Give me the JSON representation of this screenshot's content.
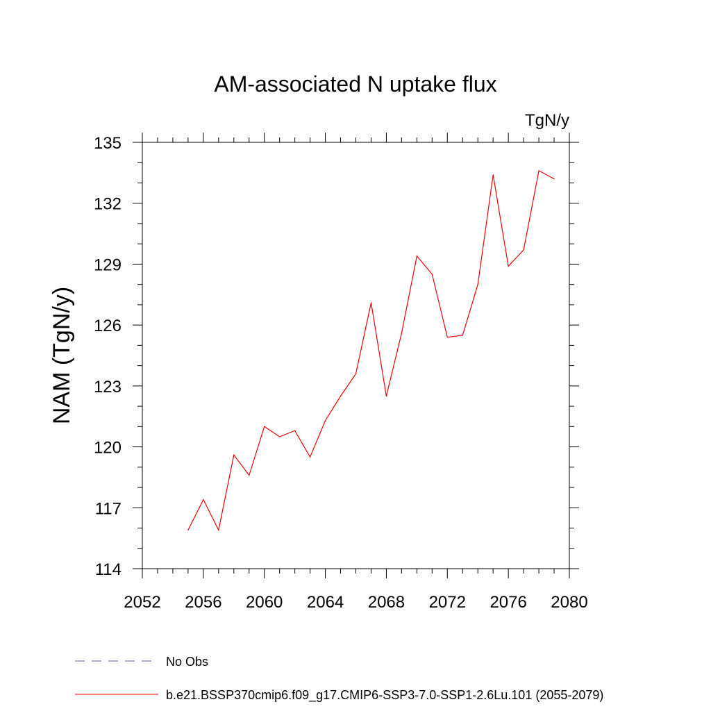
{
  "chart_data": {
    "type": "line",
    "title": "AM-associated N uptake flux",
    "units_label": "TgN/y",
    "ylabel": "NAM  (TgN/y)",
    "xlabel": "",
    "xlim": [
      2052,
      2080
    ],
    "ylim": [
      114,
      135
    ],
    "x_ticks": [
      "2052",
      "2056",
      "2060",
      "2064",
      "2068",
      "2072",
      "2076",
      "2080"
    ],
    "y_ticks": [
      "114",
      "117",
      "120",
      "123",
      "126",
      "129",
      "132",
      "135"
    ],
    "grid": false,
    "legend_position": "bottom-left",
    "legend": [
      {
        "label": "No Obs",
        "color": "#5a4fa8",
        "style": "dashed"
      },
      {
        "label": "b.e21.BSSP370cmip6.f09_g17.CMIP6-SSP3-7.0-SSP1-2.6Lu.101 (2055-2079)",
        "color": "#ee0000",
        "style": "solid"
      }
    ],
    "series": [
      {
        "name": "b.e21.BSSP370cmip6.f09_g17.CMIP6-SSP3-7.0-SSP1-2.6Lu.101 (2055-2079)",
        "color": "#ee0000",
        "x": [
          2055,
          2056,
          2057,
          2058,
          2059,
          2060,
          2061,
          2062,
          2063,
          2064,
          2065,
          2066,
          2067,
          2068,
          2069,
          2070,
          2071,
          2072,
          2073,
          2074,
          2075,
          2076,
          2077,
          2078,
          2079
        ],
        "y": [
          115.9,
          117.4,
          115.9,
          119.6,
          118.6,
          121.0,
          120.5,
          120.8,
          119.5,
          121.3,
          122.5,
          123.6,
          127.1,
          122.5,
          125.6,
          129.4,
          128.5,
          125.4,
          125.5,
          128.0,
          133.4,
          128.9,
          129.7,
          133.6,
          133.2
        ]
      }
    ]
  }
}
